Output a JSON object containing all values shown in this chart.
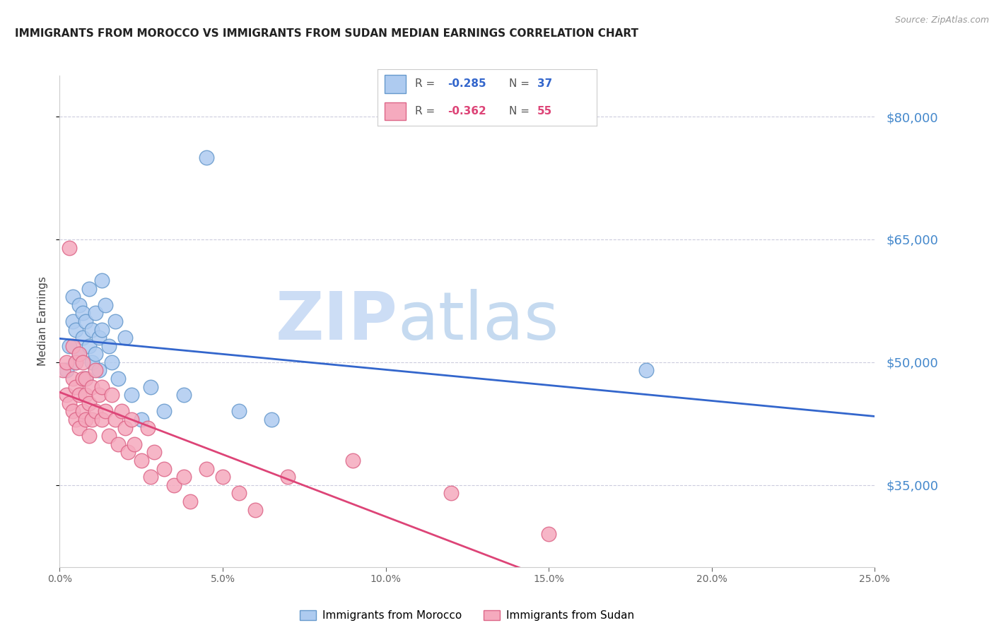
{
  "title": "IMMIGRANTS FROM MOROCCO VS IMMIGRANTS FROM SUDAN MEDIAN EARNINGS CORRELATION CHART",
  "source": "Source: ZipAtlas.com",
  "ylabel": "Median Earnings",
  "ytick_values": [
    35000,
    50000,
    65000,
    80000
  ],
  "xmin": 0.0,
  "xmax": 0.25,
  "ymin": 25000,
  "ymax": 85000,
  "morocco_color": "#aecbf0",
  "sudan_color": "#f5aabe",
  "morocco_edge": "#6699cc",
  "sudan_edge": "#dd6688",
  "line_morocco_color": "#3366cc",
  "line_sudan_color": "#dd4477",
  "watermark_zip": "ZIP",
  "watermark_atlas": "atlas",
  "watermark_color_zip": "#ccddf5",
  "watermark_color_atlas": "#c5daf0",
  "grid_color": "#ccccdd",
  "bg_color": "#ffffff",
  "title_color": "#222222",
  "right_axis_color": "#4488cc",
  "bottom_legend_labels": [
    "Immigrants from Morocco",
    "Immigrants from Sudan"
  ],
  "morocco_x": [
    0.002,
    0.003,
    0.004,
    0.004,
    0.005,
    0.005,
    0.006,
    0.006,
    0.007,
    0.007,
    0.008,
    0.008,
    0.009,
    0.009,
    0.01,
    0.01,
    0.011,
    0.011,
    0.012,
    0.012,
    0.013,
    0.013,
    0.014,
    0.015,
    0.016,
    0.017,
    0.018,
    0.02,
    0.022,
    0.025,
    0.028,
    0.032,
    0.038,
    0.045,
    0.055,
    0.065,
    0.18
  ],
  "morocco_y": [
    49000,
    52000,
    55000,
    58000,
    50000,
    54000,
    51000,
    57000,
    53000,
    56000,
    48000,
    55000,
    52000,
    59000,
    50000,
    54000,
    51000,
    56000,
    49000,
    53000,
    60000,
    54000,
    57000,
    52000,
    50000,
    55000,
    48000,
    53000,
    46000,
    43000,
    47000,
    44000,
    46000,
    75000,
    44000,
    43000,
    49000
  ],
  "sudan_x": [
    0.001,
    0.002,
    0.002,
    0.003,
    0.003,
    0.004,
    0.004,
    0.004,
    0.005,
    0.005,
    0.005,
    0.006,
    0.006,
    0.006,
    0.007,
    0.007,
    0.007,
    0.008,
    0.008,
    0.008,
    0.009,
    0.009,
    0.01,
    0.01,
    0.011,
    0.011,
    0.012,
    0.013,
    0.013,
    0.014,
    0.015,
    0.016,
    0.017,
    0.018,
    0.019,
    0.02,
    0.021,
    0.022,
    0.023,
    0.025,
    0.027,
    0.028,
    0.029,
    0.032,
    0.035,
    0.038,
    0.04,
    0.045,
    0.05,
    0.055,
    0.06,
    0.07,
    0.09,
    0.12,
    0.15
  ],
  "sudan_y": [
    49000,
    50000,
    46000,
    64000,
    45000,
    48000,
    44000,
    52000,
    50000,
    47000,
    43000,
    51000,
    46000,
    42000,
    48000,
    44000,
    50000,
    46000,
    43000,
    48000,
    45000,
    41000,
    47000,
    43000,
    49000,
    44000,
    46000,
    43000,
    47000,
    44000,
    41000,
    46000,
    43000,
    40000,
    44000,
    42000,
    39000,
    43000,
    40000,
    38000,
    42000,
    36000,
    39000,
    37000,
    35000,
    36000,
    33000,
    37000,
    36000,
    34000,
    32000,
    36000,
    38000,
    34000,
    29000
  ],
  "legend_r1": "R = -0.285",
  "legend_n1": "N = 37",
  "legend_r2": "R = -0.362",
  "legend_n2": "N = 55"
}
